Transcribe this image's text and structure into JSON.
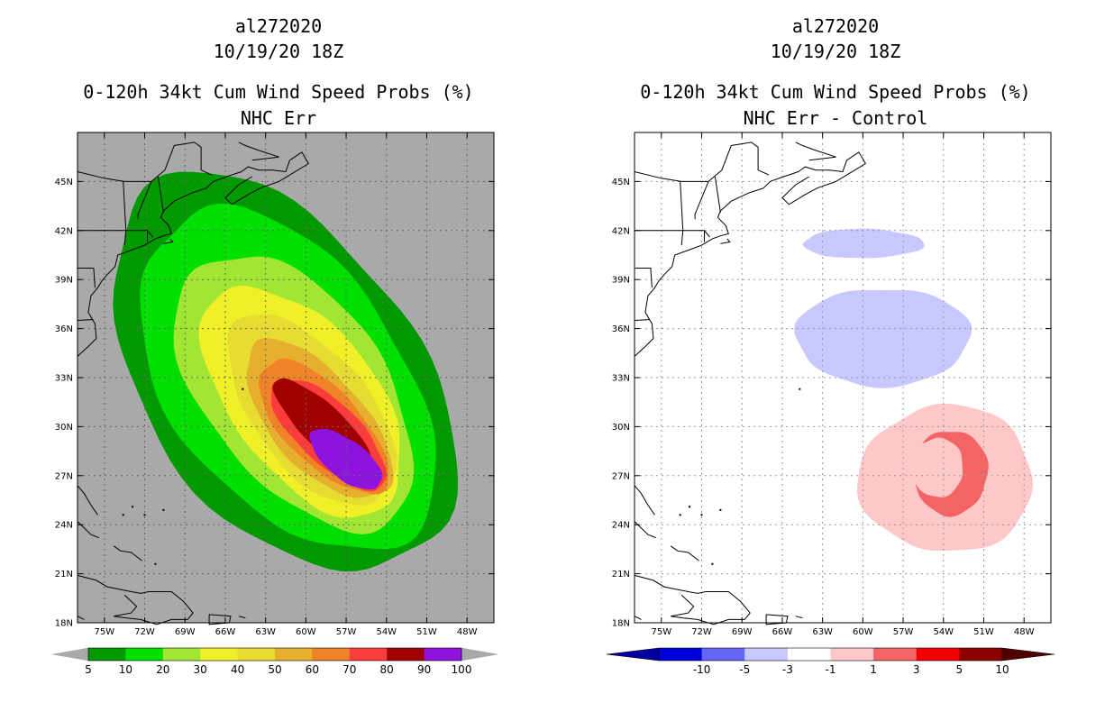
{
  "panels": {
    "left": {
      "id_line": "al272020",
      "date_line": "10/19/20 18Z",
      "product_line": "0-120h 34kt Cum Wind Speed Probs (%)",
      "subtitle": "NHC Err"
    },
    "right": {
      "id_line": "al272020",
      "date_line": "10/19/20 18Z",
      "product_line": "0-120h 34kt Cum Wind Speed Probs (%)",
      "subtitle": "NHC Err - Control"
    }
  },
  "chart_data": [
    {
      "type": "heatmap",
      "title": "0-120h 34kt Cum Wind Speed Probs (%)",
      "subtitle": "NHC Err",
      "storm": "al272020",
      "valid": "10/19/20 18Z",
      "x_ticks": [
        "75W",
        "72W",
        "69W",
        "66W",
        "63W",
        "60W",
        "57W",
        "54W",
        "51W",
        "48W"
      ],
      "y_ticks": [
        "45N",
        "42N",
        "39N",
        "36N",
        "33N",
        "30N",
        "27N",
        "24N",
        "21N",
        "18N"
      ],
      "xlim": [
        -77,
        -46
      ],
      "ylim": [
        18,
        48
      ],
      "legend_labels": [
        "5",
        "10",
        "20",
        "30",
        "40",
        "50",
        "60",
        "70",
        "80",
        "90",
        "100"
      ],
      "legend_colors": [
        "#009900",
        "#00e000",
        "#a0e632",
        "#f0f028",
        "#e6dc32",
        "#e6af2d",
        "#f08228",
        "#fa3c3c",
        "#a00000",
        "#8c14dc"
      ],
      "background_color": "#a9a9a9",
      "probability_levels": [
        {
          "threshold": 5,
          "color": "#009900",
          "center": [
            -61.8,
            33.2
          ],
          "semi_major_deg": 15.0,
          "semi_minor_deg": 9.3,
          "rotation_deg": -42
        },
        {
          "threshold": 10,
          "color": "#00e000",
          "center": [
            -61.4,
            32.8
          ],
          "semi_major_deg": 13.0,
          "semi_minor_deg": 7.9,
          "rotation_deg": -42
        },
        {
          "threshold": 20,
          "color": "#a0e632",
          "center": [
            -60.8,
            32.2
          ],
          "semi_major_deg": 10.6,
          "semi_minor_deg": 6.1,
          "rotation_deg": -42
        },
        {
          "threshold": 30,
          "color": "#f0f028",
          "center": [
            -60.2,
            31.6
          ],
          "semi_major_deg": 9.0,
          "semi_minor_deg": 4.9,
          "rotation_deg": -42
        },
        {
          "threshold": 40,
          "color": "#e6dc32",
          "center": [
            -59.6,
            31.0
          ],
          "semi_major_deg": 7.6,
          "semi_minor_deg": 3.9,
          "rotation_deg": -42
        },
        {
          "threshold": 50,
          "color": "#e6af2d",
          "center": [
            -59.1,
            30.4
          ],
          "semi_major_deg": 6.6,
          "semi_minor_deg": 3.1,
          "rotation_deg": -40
        },
        {
          "threshold": 60,
          "color": "#f08228",
          "center": [
            -58.7,
            30.0
          ],
          "semi_major_deg": 5.8,
          "semi_minor_deg": 2.5,
          "rotation_deg": -38
        },
        {
          "threshold": 70,
          "color": "#fa3c3c",
          "center": [
            -58.3,
            29.6
          ],
          "semi_major_deg": 5.1,
          "semi_minor_deg": 2.0,
          "rotation_deg": -36
        },
        {
          "threshold": 80,
          "color": "#a00000",
          "center": [
            -58.6,
            29.9
          ],
          "semi_major_deg": 4.6,
          "semi_minor_deg": 1.4,
          "rotation_deg": -38
        },
        {
          "threshold": 90,
          "color": "#8c14dc",
          "center": [
            -57.0,
            28.0
          ],
          "semi_major_deg": 3.0,
          "semi_minor_deg": 1.25,
          "rotation_deg": -30
        }
      ]
    },
    {
      "type": "heatmap",
      "title": "0-120h 34kt Cum Wind Speed Probs (%)",
      "subtitle": "NHC Err - Control",
      "storm": "al272020",
      "valid": "10/19/20 18Z",
      "x_ticks": [
        "75W",
        "72W",
        "69W",
        "66W",
        "63W",
        "60W",
        "57W",
        "54W",
        "51W",
        "48W"
      ],
      "y_ticks": [
        "45N",
        "42N",
        "39N",
        "36N",
        "33N",
        "30N",
        "27N",
        "24N",
        "21N",
        "18N"
      ],
      "xlim": [
        -77,
        -46
      ],
      "ylim": [
        18,
        48
      ],
      "legend_labels": [
        "-10",
        "-5",
        "-3",
        "-1",
        "1",
        "3",
        "5",
        "10"
      ],
      "legend_colors": [
        "#0000dc",
        "#6464f5",
        "#c8c8ff",
        "#ffffff",
        "#ffc8c8",
        "#f56464",
        "#f00000",
        "#8c0000"
      ],
      "difference_regions": [
        {
          "sign": "negative",
          "band": "-3 to -1",
          "color": "#c8c8ff",
          "center": [
            -58.5,
            35.5
          ],
          "radius_deg": [
            6.5,
            3.0
          ]
        },
        {
          "sign": "negative",
          "band": "-3 to -1",
          "color": "#c8c8ff",
          "center": [
            -60.0,
            41.2
          ],
          "radius_deg": [
            4.5,
            0.9
          ]
        },
        {
          "sign": "positive",
          "band": "1 to 3",
          "color": "#ffc8c8",
          "center": [
            -53.8,
            26.8
          ],
          "radius_deg": [
            6.5,
            4.5
          ]
        },
        {
          "sign": "positive",
          "band": "3 to 5",
          "color": "#f56464",
          "center": [
            -53.5,
            27.2
          ],
          "radius_deg": [
            2.8,
            2.6
          ]
        }
      ]
    }
  ]
}
